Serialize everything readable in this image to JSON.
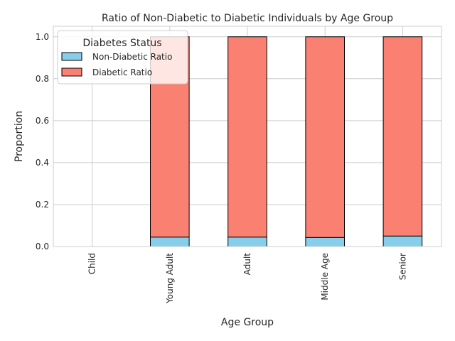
{
  "chart_data": {
    "type": "bar",
    "stacked": true,
    "title": "Ratio of Non-Diabetic to Diabetic Individuals by Age Group",
    "xlabel": "Age Group",
    "ylabel": "Proportion",
    "ylim": [
      0,
      1.05
    ],
    "yticks": [
      "0.0",
      "0.2",
      "0.4",
      "0.6",
      "0.8",
      "1.0"
    ],
    "categories": [
      "Child",
      "Young Adult",
      "Adult",
      "Middle Age",
      "Senior"
    ],
    "series": [
      {
        "name": "Non-Diabetic Ratio",
        "color": "#87ceeb",
        "values": [
          0.0,
          0.045,
          0.045,
          0.043,
          0.05
        ]
      },
      {
        "name": "Diabetic Ratio",
        "color": "#fa8072",
        "values": [
          0.0,
          0.955,
          0.955,
          0.957,
          0.95
        ]
      }
    ],
    "legend": {
      "title": "Diabetes Status",
      "placement": "upper-left"
    },
    "grid": true
  }
}
